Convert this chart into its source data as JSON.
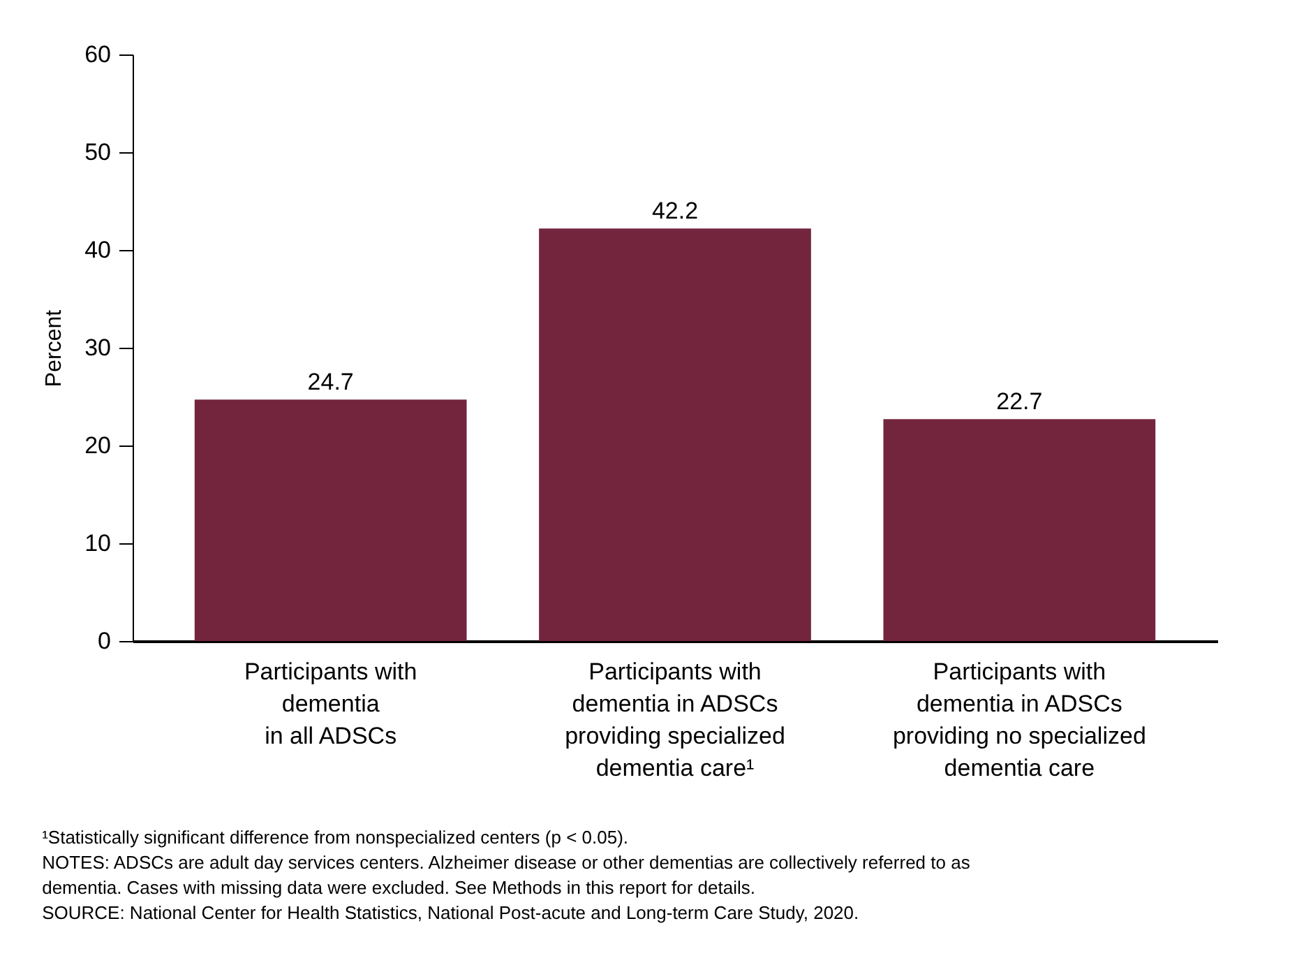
{
  "chart_data": {
    "type": "bar",
    "ylabel": "Percent",
    "categories": [
      "Participants with\ndementia\nin all ADSCs",
      "Participants with\ndementia in ADSCs\nproviding specialized\ndementia care¹",
      "Participants with\ndementia in ADSCs\nproviding no specialized\ndementia care"
    ],
    "values": [
      24.7,
      42.2,
      22.7
    ],
    "color": "#74253e",
    "data_labels": true,
    "ylim": [
      0,
      60
    ],
    "yticks": [
      0,
      10,
      20,
      30,
      40,
      50,
      60
    ],
    "grid": false,
    "annotations": [
      "¹Statistically significant difference from nonspecialized centers (p < 0.05).",
      "NOTES: ADSCs are adult day services centers. Alzheimer disease or other dementias are collectively referred to as",
      "dementia. Cases with missing data were excluded. See Methods in this report for details.",
      "SOURCE: National Center for Health Statistics, National Post-acute and Long-term Care Study, 2020."
    ]
  }
}
